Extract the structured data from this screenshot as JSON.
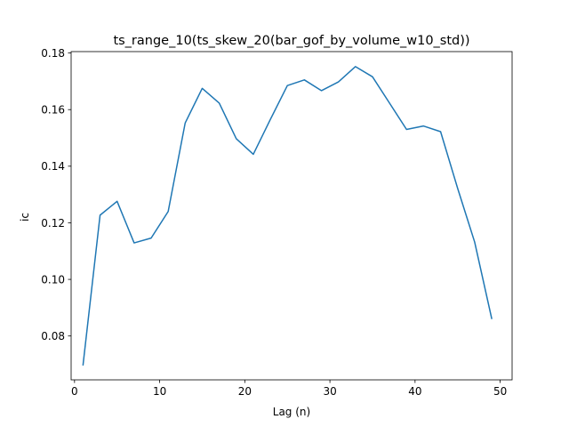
{
  "chart_data": {
    "type": "line",
    "title": "ts_range_10(ts_skew_20(bar_gof_by_volume_w10_std))",
    "xlabel": "Lag (n)",
    "ylabel": "ic",
    "xlim": [
      -0.4,
      51.4
    ],
    "ylim": [
      0.0645,
      0.1805
    ],
    "xticks": [
      0,
      10,
      20,
      30,
      40,
      50
    ],
    "yticks": [
      0.08,
      0.1,
      0.12,
      0.14,
      0.16,
      0.18
    ],
    "xtick_labels": [
      "0",
      "10",
      "20",
      "30",
      "40",
      "50"
    ],
    "ytick_labels": [
      "0.08",
      "0.10",
      "0.12",
      "0.14",
      "0.16",
      "0.18"
    ],
    "grid": false,
    "legend": "none",
    "line_color": "#1f77b4",
    "series": [
      {
        "x": [
          1,
          3,
          5,
          7,
          9,
          11,
          13,
          15,
          17,
          19,
          21,
          23,
          25,
          27,
          29,
          31,
          33,
          35,
          37,
          39,
          41,
          43,
          45,
          47,
          49
        ],
        "values": [
          0.0698,
          0.1227,
          0.1276,
          0.1129,
          0.1146,
          0.124,
          0.1553,
          0.1675,
          0.1623,
          0.1497,
          0.1442,
          0.1565,
          0.1685,
          0.1705,
          0.1667,
          0.1698,
          0.1752,
          0.1716,
          0.1623,
          0.153,
          0.1542,
          0.1522,
          0.1322,
          0.1132,
          0.0862
        ]
      }
    ]
  }
}
